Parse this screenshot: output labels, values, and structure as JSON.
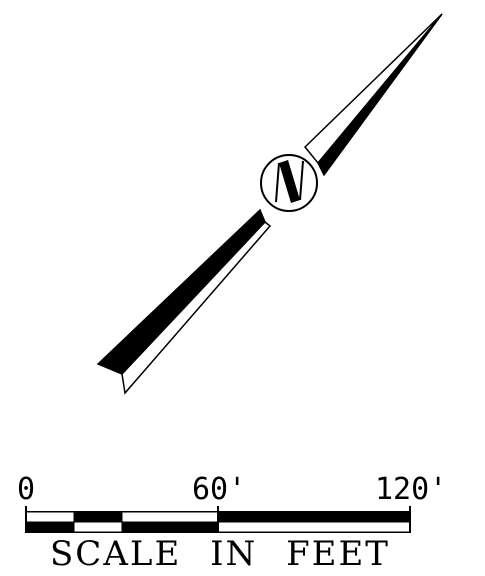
{
  "north_arrow": {
    "circle_label": "N"
  },
  "scale_bar": {
    "tick_labels": [
      "0",
      "60'",
      "120'"
    ],
    "title": "SCALE IN FEET",
    "colors": {
      "ink": "#000000",
      "paper": "#ffffff"
    }
  }
}
